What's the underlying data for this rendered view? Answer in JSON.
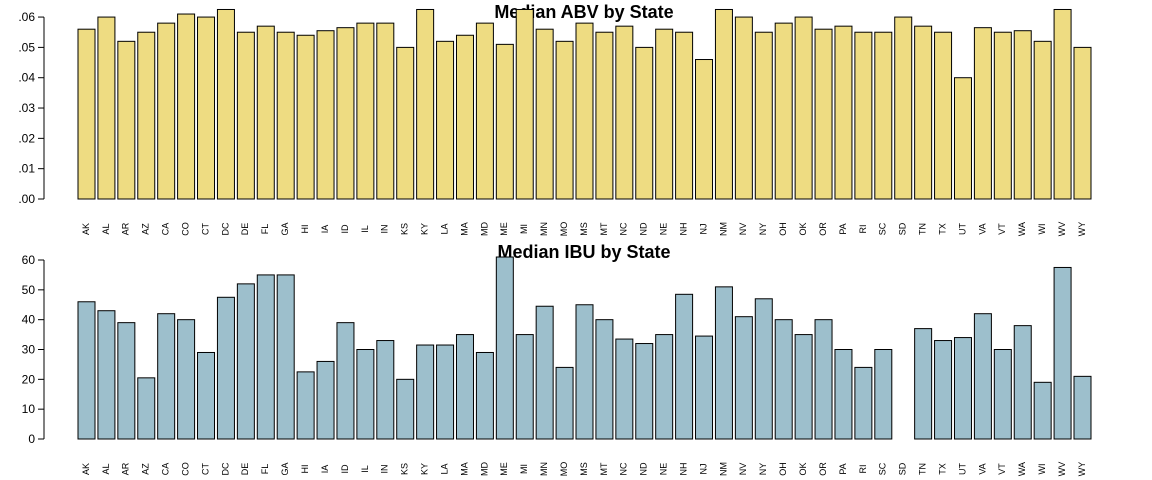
{
  "chart_data": [
    {
      "type": "bar",
      "title": "Median ABV by State",
      "xlabel": "",
      "ylabel": "",
      "ylim": [
        0,
        0.062
      ],
      "yticks": [
        ".00",
        ".01",
        ".02",
        ".03",
        ".04",
        ".05",
        ".06"
      ],
      "ytick_values": [
        0,
        0.01,
        0.02,
        0.03,
        0.04,
        0.05,
        0.06
      ],
      "bar_color": "#EEDC82",
      "categories": [
        "AK",
        "AL",
        "AR",
        "AZ",
        "CA",
        "CO",
        "CT",
        "DC",
        "DE",
        "FL",
        "GA",
        "HI",
        "IA",
        "ID",
        "IL",
        "IN",
        "KS",
        "KY",
        "LA",
        "MA",
        "MD",
        "ME",
        "MI",
        "MN",
        "MO",
        "MS",
        "MT",
        "NC",
        "ND",
        "NE",
        "NH",
        "NJ",
        "NM",
        "NV",
        "NY",
        "OH",
        "OK",
        "OR",
        "PA",
        "RI",
        "SC",
        "SD",
        "TN",
        "TX",
        "UT",
        "VA",
        "VT",
        "WA",
        "WI",
        "WV",
        "WY"
      ],
      "values": [
        0.056,
        0.06,
        0.052,
        0.055,
        0.058,
        0.061,
        0.06,
        0.0625,
        0.055,
        0.057,
        0.055,
        0.054,
        0.0555,
        0.0565,
        0.058,
        0.058,
        0.05,
        0.0625,
        0.052,
        0.054,
        0.058,
        0.051,
        0.0625,
        0.056,
        0.052,
        0.058,
        0.055,
        0.057,
        0.05,
        0.056,
        0.055,
        0.046,
        0.0625,
        0.06,
        0.055,
        0.058,
        0.06,
        0.056,
        0.057,
        0.055,
        0.055,
        0.06,
        0.057,
        0.055,
        0.04,
        0.0565,
        0.055,
        0.0555,
        0.052,
        0.0625,
        0.05
      ]
    },
    {
      "type": "bar",
      "title": "Median IBU by State",
      "xlabel": "",
      "ylabel": "",
      "ylim": [
        0,
        60
      ],
      "yticks": [
        "0",
        "10",
        "20",
        "30",
        "40",
        "50",
        "60"
      ],
      "ytick_values": [
        0,
        10,
        20,
        30,
        40,
        50,
        60
      ],
      "bar_color": "#9DBFCC",
      "categories": [
        "AK",
        "AL",
        "AR",
        "AZ",
        "CA",
        "CO",
        "CT",
        "DC",
        "DE",
        "FL",
        "GA",
        "HI",
        "IA",
        "ID",
        "IL",
        "IN",
        "KS",
        "KY",
        "LA",
        "MA",
        "MD",
        "ME",
        "MI",
        "MN",
        "MO",
        "MS",
        "MT",
        "NC",
        "ND",
        "NE",
        "NH",
        "NJ",
        "NM",
        "NV",
        "NY",
        "OH",
        "OK",
        "OR",
        "PA",
        "RI",
        "SC",
        "SD",
        "TN",
        "TX",
        "UT",
        "VA",
        "VT",
        "WA",
        "WI",
        "WV",
        "WY"
      ],
      "values": [
        46,
        43,
        39,
        20.5,
        42,
        40,
        29,
        47.5,
        52,
        55,
        55,
        22.5,
        26,
        39,
        30,
        33,
        20,
        31.5,
        31.5,
        35,
        29,
        61,
        35,
        44.5,
        24,
        45,
        40,
        33.5,
        32,
        35,
        48.5,
        34.5,
        51,
        41,
        47,
        40,
        35,
        40,
        30,
        24,
        30,
        null,
        37,
        33,
        34,
        42,
        30,
        38,
        19,
        57.5,
        21
      ]
    }
  ]
}
